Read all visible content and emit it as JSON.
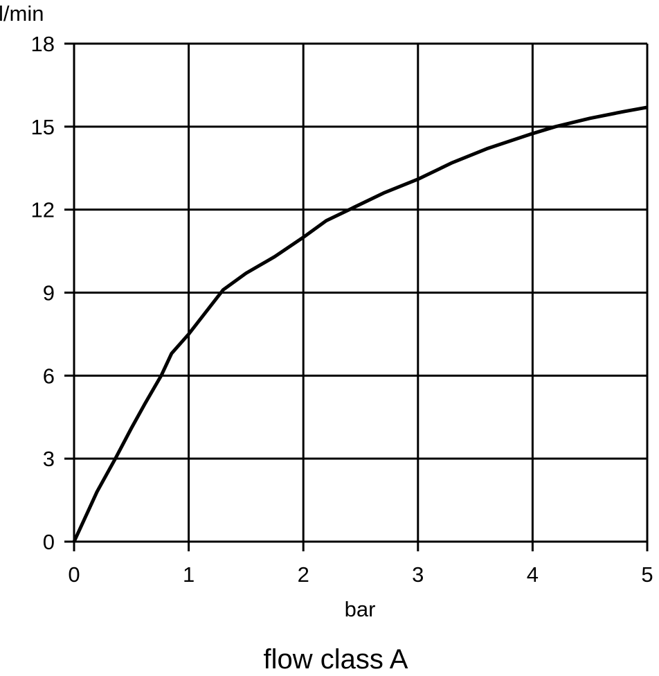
{
  "chart_data": {
    "type": "line",
    "title": "flow class A",
    "xlabel": "bar",
    "ylabel": "l/min",
    "xlim": [
      0,
      5
    ],
    "ylim": [
      0,
      18
    ],
    "xticks": [
      0,
      1,
      2,
      3,
      4,
      5
    ],
    "yticks": [
      0,
      3,
      6,
      9,
      12,
      15,
      18
    ],
    "grid": true,
    "line_color": "#000000",
    "series": [
      {
        "x": [
          0,
          0.1,
          0.2,
          0.36,
          0.5,
          0.62,
          0.76,
          0.85,
          1.0,
          1.15,
          1.3,
          1.5,
          1.75,
          2.0,
          2.2,
          2.4,
          2.7,
          3.0,
          3.3,
          3.6,
          4.0,
          4.2,
          4.5,
          4.8,
          5.0
        ],
        "y": [
          0,
          0.9,
          1.8,
          3.0,
          4.1,
          5.0,
          6.0,
          6.8,
          7.5,
          8.3,
          9.1,
          9.7,
          10.3,
          11.0,
          11.6,
          12.0,
          12.6,
          13.1,
          13.7,
          14.2,
          14.75,
          15.0,
          15.3,
          15.55,
          15.7
        ]
      }
    ]
  }
}
